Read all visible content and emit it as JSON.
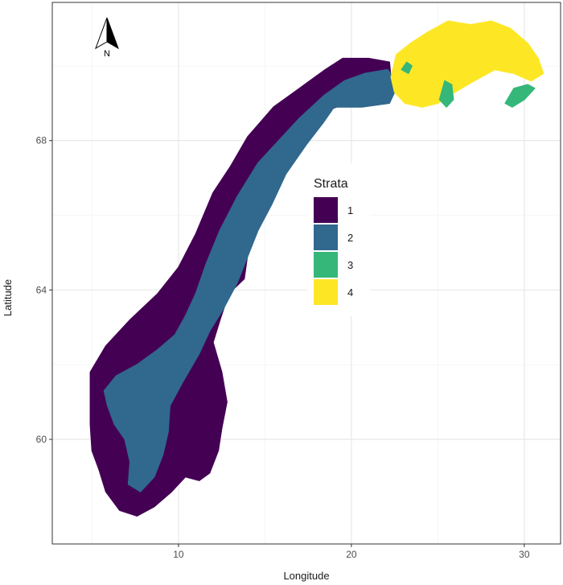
{
  "chart_data": {
    "type": "map",
    "xlabel": "Longitude",
    "ylabel": "Latitude",
    "xlim": [
      2.7,
      32.1
    ],
    "ylim": [
      57.2,
      71.7
    ],
    "x_ticks": [
      10,
      20,
      30
    ],
    "y_ticks": [
      60,
      64,
      68
    ],
    "x_tick_labels": [
      "10",
      "20",
      "30"
    ],
    "y_tick_labels": [
      "60",
      "64",
      "68"
    ],
    "grid": true,
    "legend": {
      "title": "Strata",
      "placement": "center-right",
      "entries": [
        {
          "label": "1",
          "color": "#440154"
        },
        {
          "label": "2",
          "color": "#31688e"
        },
        {
          "label": "3",
          "color": "#35b779"
        },
        {
          "label": "4",
          "color": "#fde725"
        }
      ]
    },
    "north_arrow": {
      "label": "N"
    },
    "strata_regions": [
      {
        "stratum": "1",
        "color": "#440154",
        "outline": [
          [
            4.9,
            61.8
          ],
          [
            5.8,
            62.5
          ],
          [
            7.2,
            63.2
          ],
          [
            8.8,
            63.9
          ],
          [
            10.0,
            64.6
          ],
          [
            11.0,
            65.5
          ],
          [
            12.0,
            66.6
          ],
          [
            13.0,
            67.3
          ],
          [
            14.0,
            68.1
          ],
          [
            15.5,
            68.9
          ],
          [
            17.0,
            69.4
          ],
          [
            18.5,
            69.9
          ],
          [
            19.5,
            70.2
          ],
          [
            21.0,
            70.2
          ],
          [
            22.2,
            70.1
          ],
          [
            22.3,
            69.6
          ],
          [
            21.2,
            69.2
          ],
          [
            19.8,
            69.0
          ],
          [
            18.5,
            68.8
          ],
          [
            17.8,
            68.4
          ],
          [
            16.6,
            67.5
          ],
          [
            15.6,
            66.9
          ],
          [
            14.6,
            66.0
          ],
          [
            14.1,
            65.3
          ],
          [
            13.8,
            64.3
          ],
          [
            12.9,
            63.9
          ],
          [
            12.4,
            63.2
          ],
          [
            12.0,
            62.6
          ],
          [
            12.5,
            61.8
          ],
          [
            12.8,
            61.0
          ],
          [
            12.5,
            60.3
          ],
          [
            12.3,
            59.7
          ],
          [
            11.8,
            59.1
          ],
          [
            11.2,
            58.9
          ],
          [
            10.4,
            59.0
          ],
          [
            9.6,
            58.6
          ],
          [
            8.6,
            58.2
          ],
          [
            7.6,
            57.95
          ],
          [
            6.6,
            58.1
          ],
          [
            5.8,
            58.6
          ],
          [
            5.4,
            59.2
          ],
          [
            5.0,
            59.7
          ],
          [
            4.9,
            60.4
          ],
          [
            4.9,
            61.2
          ]
        ]
      },
      {
        "stratum": "2",
        "color": "#31688e",
        "outline": [
          [
            5.7,
            61.3
          ],
          [
            6.4,
            61.7
          ],
          [
            7.6,
            62.0
          ],
          [
            8.8,
            62.4
          ],
          [
            9.8,
            62.8
          ],
          [
            10.4,
            63.3
          ],
          [
            11.0,
            63.9
          ],
          [
            11.6,
            64.7
          ],
          [
            12.4,
            65.6
          ],
          [
            13.4,
            66.5
          ],
          [
            14.6,
            67.4
          ],
          [
            15.8,
            68.0
          ],
          [
            17.0,
            68.6
          ],
          [
            18.4,
            69.2
          ],
          [
            19.6,
            69.6
          ],
          [
            20.8,
            69.8
          ],
          [
            22.1,
            69.9
          ],
          [
            22.7,
            69.5
          ],
          [
            22.2,
            69.0
          ],
          [
            20.6,
            68.9
          ],
          [
            19.0,
            68.9
          ],
          [
            18.4,
            68.5
          ],
          [
            17.4,
            67.9
          ],
          [
            16.2,
            67.1
          ],
          [
            15.4,
            66.3
          ],
          [
            14.6,
            65.6
          ],
          [
            14.0,
            64.9
          ],
          [
            13.4,
            64.2
          ],
          [
            12.6,
            63.5
          ],
          [
            11.8,
            62.9
          ],
          [
            11.2,
            62.3
          ],
          [
            10.2,
            61.5
          ],
          [
            9.5,
            60.9
          ],
          [
            9.4,
            60.2
          ],
          [
            9.1,
            59.6
          ],
          [
            8.6,
            59.0
          ],
          [
            7.8,
            58.6
          ],
          [
            7.1,
            58.8
          ],
          [
            7.2,
            59.4
          ],
          [
            6.9,
            60.0
          ],
          [
            6.3,
            60.4
          ],
          [
            5.9,
            60.9
          ]
        ]
      },
      {
        "stratum": "4",
        "color": "#fde725",
        "outline": [
          [
            22.3,
            69.7
          ],
          [
            22.6,
            70.3
          ],
          [
            23.4,
            70.6
          ],
          [
            24.4,
            70.9
          ],
          [
            25.6,
            71.2
          ],
          [
            26.9,
            71.1
          ],
          [
            28.1,
            71.2
          ],
          [
            29.2,
            71.0
          ],
          [
            30.2,
            70.6
          ],
          [
            30.8,
            70.2
          ],
          [
            31.1,
            69.8
          ],
          [
            30.4,
            69.6
          ],
          [
            29.4,
            69.8
          ],
          [
            28.3,
            69.9
          ],
          [
            27.1,
            69.6
          ],
          [
            26.0,
            69.3
          ],
          [
            25.0,
            69.0
          ],
          [
            24.1,
            68.9
          ],
          [
            23.1,
            69.0
          ],
          [
            22.5,
            69.3
          ]
        ]
      },
      {
        "stratum": "3",
        "color": "#35b779",
        "outline": [
          [
            28.9,
            69.0
          ],
          [
            29.4,
            69.4
          ],
          [
            30.2,
            69.5
          ],
          [
            30.6,
            69.4
          ],
          [
            30.0,
            69.1
          ],
          [
            29.3,
            68.9
          ]
        ]
      },
      {
        "stratum": "3",
        "color": "#35b779",
        "outline": [
          [
            25.1,
            69.1
          ],
          [
            25.4,
            69.6
          ],
          [
            25.8,
            69.5
          ],
          [
            25.9,
            69.1
          ],
          [
            25.5,
            68.9
          ]
        ]
      },
      {
        "stratum": "3",
        "color": "#35b779",
        "outline": [
          [
            22.9,
            69.9
          ],
          [
            23.2,
            70.1
          ],
          [
            23.5,
            70.0
          ],
          [
            23.3,
            69.8
          ]
        ]
      }
    ]
  }
}
